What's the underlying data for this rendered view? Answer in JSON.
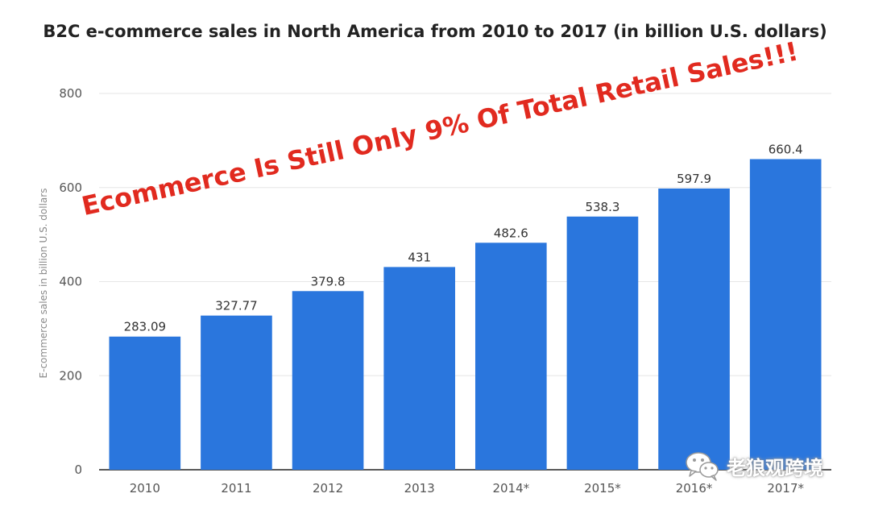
{
  "chart_data": {
    "type": "bar",
    "title": "B2C e-commerce sales in North America from 2010 to 2017 (in billion U.S. dollars)",
    "xlabel": "",
    "ylabel": "E-commerce sales in billion U.S. dollars",
    "categories": [
      "2010",
      "2011",
      "2012",
      "2013",
      "2014*",
      "2015*",
      "2016*",
      "2017*"
    ],
    "values": [
      283.09,
      327.77,
      379.8,
      431,
      482.6,
      538.3,
      597.9,
      660.4
    ],
    "value_labels": [
      "283.09",
      "327.77",
      "379.8",
      "431",
      "482.6",
      "538.3",
      "597.9",
      "660.4"
    ],
    "ylim": [
      0,
      800
    ],
    "yticks": [
      0,
      200,
      400,
      600,
      800
    ],
    "grid": true,
    "bar_color": "#2a76dd",
    "grid_color": "#e6e6e6"
  },
  "overlay": {
    "text": "Ecommerce Is Still Only 9% Of Total Retail Sales!!!",
    "color": "#e12a1f"
  },
  "watermark": {
    "text": "老狼观跨境",
    "icon": "wechat-icon"
  }
}
